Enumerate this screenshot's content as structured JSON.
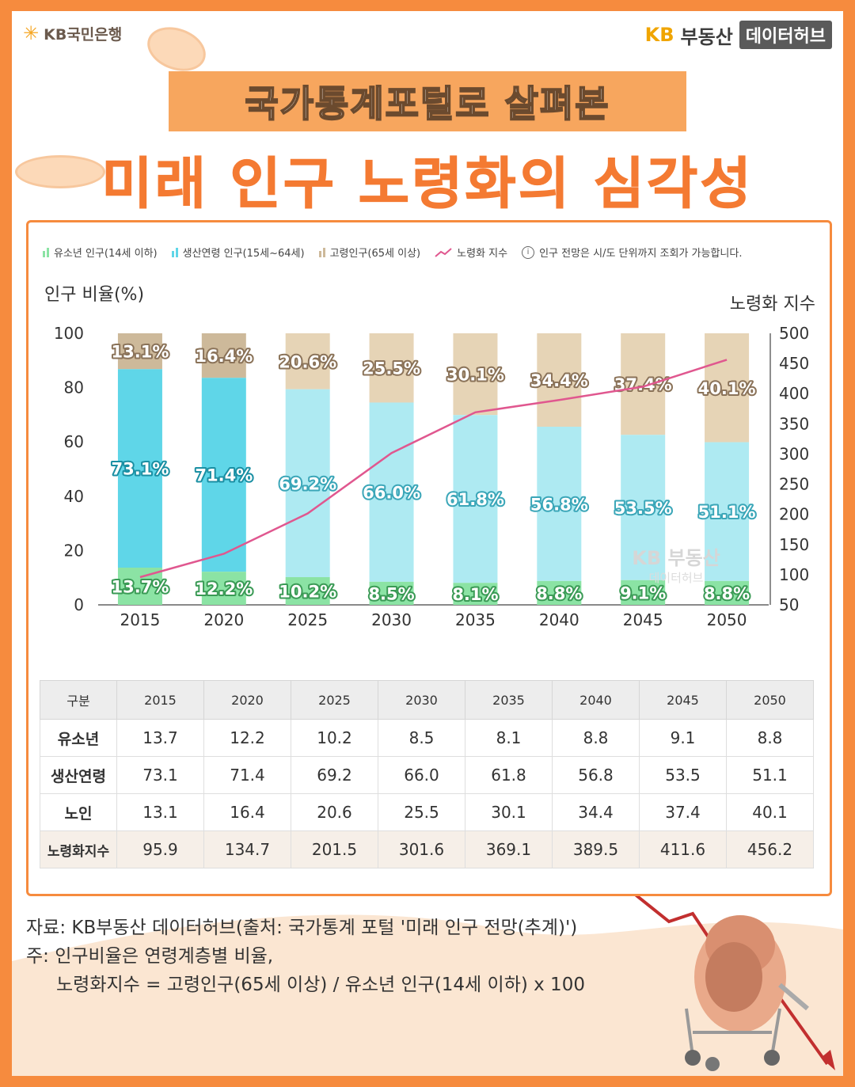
{
  "brand_left": {
    "name": "KB국민은행"
  },
  "brand_right": {
    "kb": "KB",
    "name": "부동산",
    "hub": "데이터허브"
  },
  "title": {
    "line1": "국가통계포털로 살펴본",
    "line2": "미래 인구 노령화의 심각성"
  },
  "legend": {
    "items": [
      "유소년 인구(14세 이하)",
      "생산연령 인구(15세~64세)",
      "고령인구(65세 이상)",
      "노령화 지수"
    ],
    "note": "인구 전망은 시/도 단위까지 조회가 가능합니다."
  },
  "colors": {
    "youth": "#8be3a4",
    "working_dark": "#5fd6e8",
    "working_light": "#aeeaf2",
    "elderly": "#e6d4b6",
    "elderly_dark": "#cdb99a",
    "aging_line": "#e0578f",
    "accent": "#f68b3e"
  },
  "chart_data": {
    "type": "bar",
    "stacked": true,
    "categories": [
      "2015",
      "2020",
      "2025",
      "2030",
      "2035",
      "2040",
      "2045",
      "2050"
    ],
    "series": [
      {
        "name": "유소년 인구(14세 이하)",
        "values": [
          13.7,
          12.2,
          10.2,
          8.5,
          8.1,
          8.8,
          9.1,
          8.8
        ]
      },
      {
        "name": "생산연령 인구(15세~64세)",
        "values": [
          73.1,
          71.4,
          69.2,
          66.0,
          61.8,
          56.8,
          53.5,
          51.1
        ]
      },
      {
        "name": "고령인구(65세 이상)",
        "values": [
          13.1,
          16.4,
          20.6,
          25.5,
          30.1,
          34.4,
          37.4,
          40.1
        ]
      }
    ],
    "line_series": {
      "name": "노령화 지수",
      "axis": "right",
      "values": [
        95.9,
        134.7,
        201.5,
        301.6,
        369.1,
        389.5,
        411.6,
        456.2
      ]
    },
    "ylabel": "인구 비율(%)",
    "ylabel_right": "노령화 지수",
    "ylim": [
      0,
      100
    ],
    "ylim_right": [
      50,
      500
    ],
    "yticks": [
      0,
      20,
      40,
      60,
      80,
      100
    ],
    "yticks_right": [
      50,
      100,
      150,
      200,
      250,
      300,
      350,
      400,
      450,
      500
    ],
    "data_labels": {
      "youth": [
        "13.7%",
        "12.2%",
        "10.2%",
        "8.5%",
        "8.1%",
        "8.8%",
        "9.1%",
        "8.8%"
      ],
      "working": [
        "73.1%",
        "71.4%",
        "69.2%",
        "66.0%",
        "61.8%",
        "56.8%",
        "53.5%",
        "51.1%"
      ],
      "elderly": [
        "13.1%",
        "16.4%",
        "20.6%",
        "25.5%",
        "30.1%",
        "34.4%",
        "37.4%",
        "40.1%"
      ]
    },
    "watermark": [
      "KB 부동산",
      "데이터허브"
    ],
    "grid": false,
    "legend_position": "top"
  },
  "table": {
    "header": [
      "구분",
      "2015",
      "2020",
      "2025",
      "2030",
      "2035",
      "2040",
      "2045",
      "2050"
    ],
    "rows": [
      [
        "유소년",
        "13.7",
        "12.2",
        "10.2",
        "8.5",
        "8.1",
        "8.8",
        "9.1",
        "8.8"
      ],
      [
        "생산연령",
        "73.1",
        "71.4",
        "69.2",
        "66.0",
        "61.8",
        "56.8",
        "53.5",
        "51.1"
      ],
      [
        "노인",
        "13.1",
        "16.4",
        "20.6",
        "25.5",
        "30.1",
        "34.4",
        "37.4",
        "40.1"
      ],
      [
        "노령화지수",
        "95.9",
        "134.7",
        "201.5",
        "301.6",
        "369.1",
        "389.5",
        "411.6",
        "456.2"
      ]
    ]
  },
  "notes": {
    "source": "자료: KB부동산 데이터허브(출처: 국가통계 포털 '미래 인구 전망(추계)')",
    "note1": "주: 인구비율은 연령계층별 비율,",
    "note2": "노령화지수 = 고령인구(65세 이상) / 유소년 인구(14세 이하) x 100"
  }
}
